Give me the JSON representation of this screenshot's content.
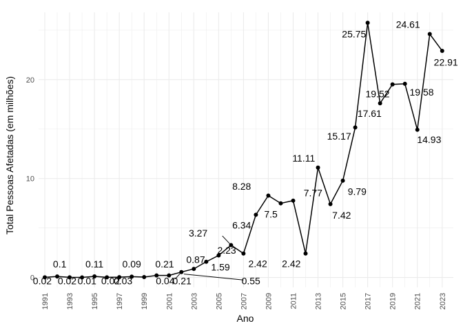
{
  "chart_data": {
    "type": "line",
    "xlabel": "Ano",
    "ylabel": "Total Pessoas Afetadas (em milhões)",
    "x": [
      1991,
      1992,
      1993,
      1994,
      1995,
      1996,
      1997,
      1998,
      1999,
      2000,
      2001,
      2002,
      2003,
      2004,
      2005,
      2006,
      2007,
      2008,
      2009,
      2010,
      2011,
      2012,
      2013,
      2014,
      2015,
      2016,
      2017,
      2018,
      2019,
      2020,
      2021,
      2022,
      2023
    ],
    "values": [
      0.02,
      0.1,
      0.02,
      0.01,
      0.11,
      0.02,
      0.03,
      0.09,
      0.04,
      0.21,
      0.21,
      0.55,
      0.87,
      1.59,
      2.23,
      3.27,
      2.42,
      6.34,
      8.28,
      7.5,
      7.77,
      2.42,
      11.11,
      7.42,
      9.79,
      15.17,
      25.75,
      17.61,
      19.52,
      19.58,
      14.93,
      24.61,
      22.91
    ],
    "xlim": [
      1990.5,
      2023.9
    ],
    "ylim": [
      -1.0,
      26.8
    ],
    "xticks": [
      "1991",
      "1993",
      "1995",
      "1997",
      "1999",
      "2001",
      "2003",
      "2005",
      "2007",
      "2009",
      "2011",
      "2013",
      "2015",
      "2017",
      "2019",
      "2021",
      "2023"
    ],
    "yticks": [
      "0",
      "10",
      "20"
    ],
    "data_labels": [
      {
        "text": "0.02",
        "x": 1990.8,
        "y": -0.35
      },
      {
        "text": "0.1",
        "x": 1992.2,
        "y": 1.35
      },
      {
        "text": "0.02",
        "x": 1992.8,
        "y": -0.35
      },
      {
        "text": "0.01",
        "x": 1994.4,
        "y": -0.35
      },
      {
        "text": "0.11",
        "x": 1995.0,
        "y": 1.35
      },
      {
        "text": "0.02",
        "x": 1996.3,
        "y": -0.35
      },
      {
        "text": "0.03",
        "x": 1997.3,
        "y": -0.35
      },
      {
        "text": "0.09",
        "x": 1998.0,
        "y": 1.35
      },
      {
        "text": "0.04",
        "x": 2000.7,
        "y": -0.35
      },
      {
        "text": "0.21",
        "x": 2000.65,
        "y": 1.35
      },
      {
        "text": "0.21",
        "x": 2002.05,
        "y": -0.35
      },
      {
        "text": "0.55",
        "x": 2007.6,
        "y": -0.35
      },
      {
        "text": "0.87",
        "x": 2003.15,
        "y": 1.8
      },
      {
        "text": "1.59",
        "x": 2005.15,
        "y": 1.05
      },
      {
        "text": "2.23",
        "x": 2005.65,
        "y": 2.75
      },
      {
        "text": "3.27",
        "x": 2003.35,
        "y": 4.5
      },
      {
        "text": "2.42",
        "x": 2008.15,
        "y": 1.4
      },
      {
        "text": "6.34",
        "x": 2006.85,
        "y": 5.3
      },
      {
        "text": "8.28",
        "x": 2006.85,
        "y": 9.2
      },
      {
        "text": "7.5",
        "x": 2009.2,
        "y": 6.4
      },
      {
        "text": "7.77",
        "x": 2012.6,
        "y": 8.55
      },
      {
        "text": "2.42",
        "x": 2010.85,
        "y": 1.4
      },
      {
        "text": "11.11",
        "x": 2011.85,
        "y": 12.05
      },
      {
        "text": "7.42",
        "x": 2014.9,
        "y": 6.3
      },
      {
        "text": "9.79",
        "x": 2016.15,
        "y": 8.7
      },
      {
        "text": "15.17",
        "x": 2014.7,
        "y": 14.3
      },
      {
        "text": "25.75",
        "x": 2015.9,
        "y": 24.6
      },
      {
        "text": "17.61",
        "x": 2017.15,
        "y": 16.6
      },
      {
        "text": "19.52",
        "x": 2017.8,
        "y": 18.55
      },
      {
        "text": "19.58",
        "x": 2021.35,
        "y": 18.75
      },
      {
        "text": "14.93",
        "x": 2021.95,
        "y": 13.95
      },
      {
        "text": "24.61",
        "x": 2020.25,
        "y": 25.6
      },
      {
        "text": "22.91",
        "x": 2023.3,
        "y": 21.75
      }
    ],
    "leader_lines": [
      {
        "from": [
          2001.5,
          -0.15
        ],
        "to": [
          2002.0,
          0.55
        ]
      },
      {
        "from": [
          2002.2,
          0.35
        ],
        "to": [
          2007.0,
          -0.25
        ]
      },
      {
        "from": [
          2005.3,
          4.2
        ],
        "to": [
          2006.0,
          3.27
        ]
      }
    ],
    "colors": {
      "line": "#000000",
      "point": "#000000",
      "grid": "#ebebeb",
      "background": "#ffffff"
    },
    "grid": true,
    "legend": "none"
  }
}
